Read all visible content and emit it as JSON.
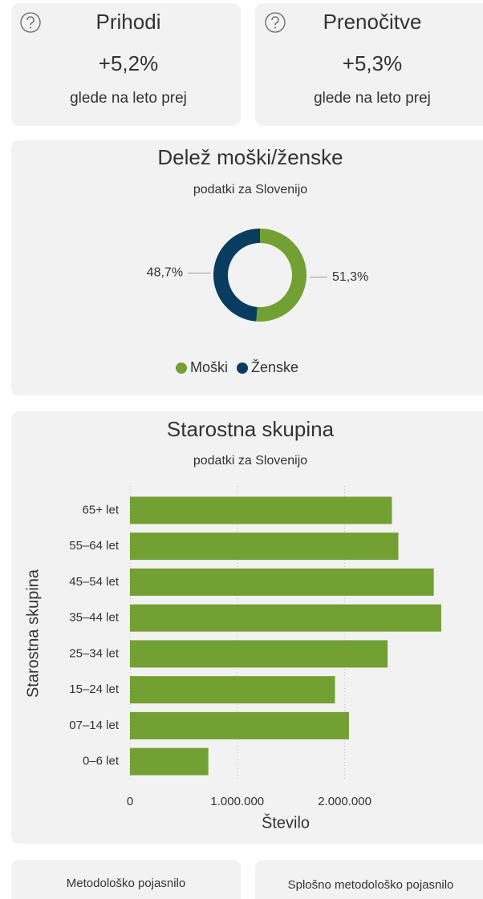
{
  "cards": [
    {
      "title": "Prihodi",
      "value": "+5,2%",
      "caption": "glede na leto prej"
    },
    {
      "title": "Prenočitve",
      "value": "+5,3%",
      "caption": "glede na leto prej"
    }
  ],
  "chart_data": [
    {
      "type": "pie",
      "title": "Delež moški/ženske",
      "subtitle": "podatki za Slovenijo",
      "categories": [
        "Moški",
        "Ženske"
      ],
      "values": [
        51.3,
        48.7
      ],
      "value_labels": [
        "51,3%",
        "48,7%"
      ],
      "colors": [
        "#73a032",
        "#083d5f"
      ],
      "legend": "bottom"
    },
    {
      "type": "bar",
      "orientation": "horizontal",
      "title": "Starostna skupina",
      "subtitle": "podatki za Slovenijo",
      "categories": [
        "65+ let",
        "55–64 let",
        "45–54 let",
        "35–44 let",
        "25–34 let",
        "15–24 let",
        "07–14 let",
        "0–6 let"
      ],
      "values": [
        2440000,
        2500000,
        2830000,
        2900000,
        2400000,
        1910000,
        2040000,
        730000
      ],
      "color": "#73a032",
      "xlabel": "Število",
      "ylabel": "Starostna skupina",
      "xlim": [
        0,
        2900000
      ],
      "xticks": [
        0,
        {
          "value": 1000000,
          "label": "1.000.000"
        },
        {
          "value": 2000000,
          "label": "2.000.000"
        }
      ],
      "grid": true
    }
  ],
  "buttons": [
    "Metodološko pojasnilo",
    "Splošno metodološko pojasnilo"
  ]
}
